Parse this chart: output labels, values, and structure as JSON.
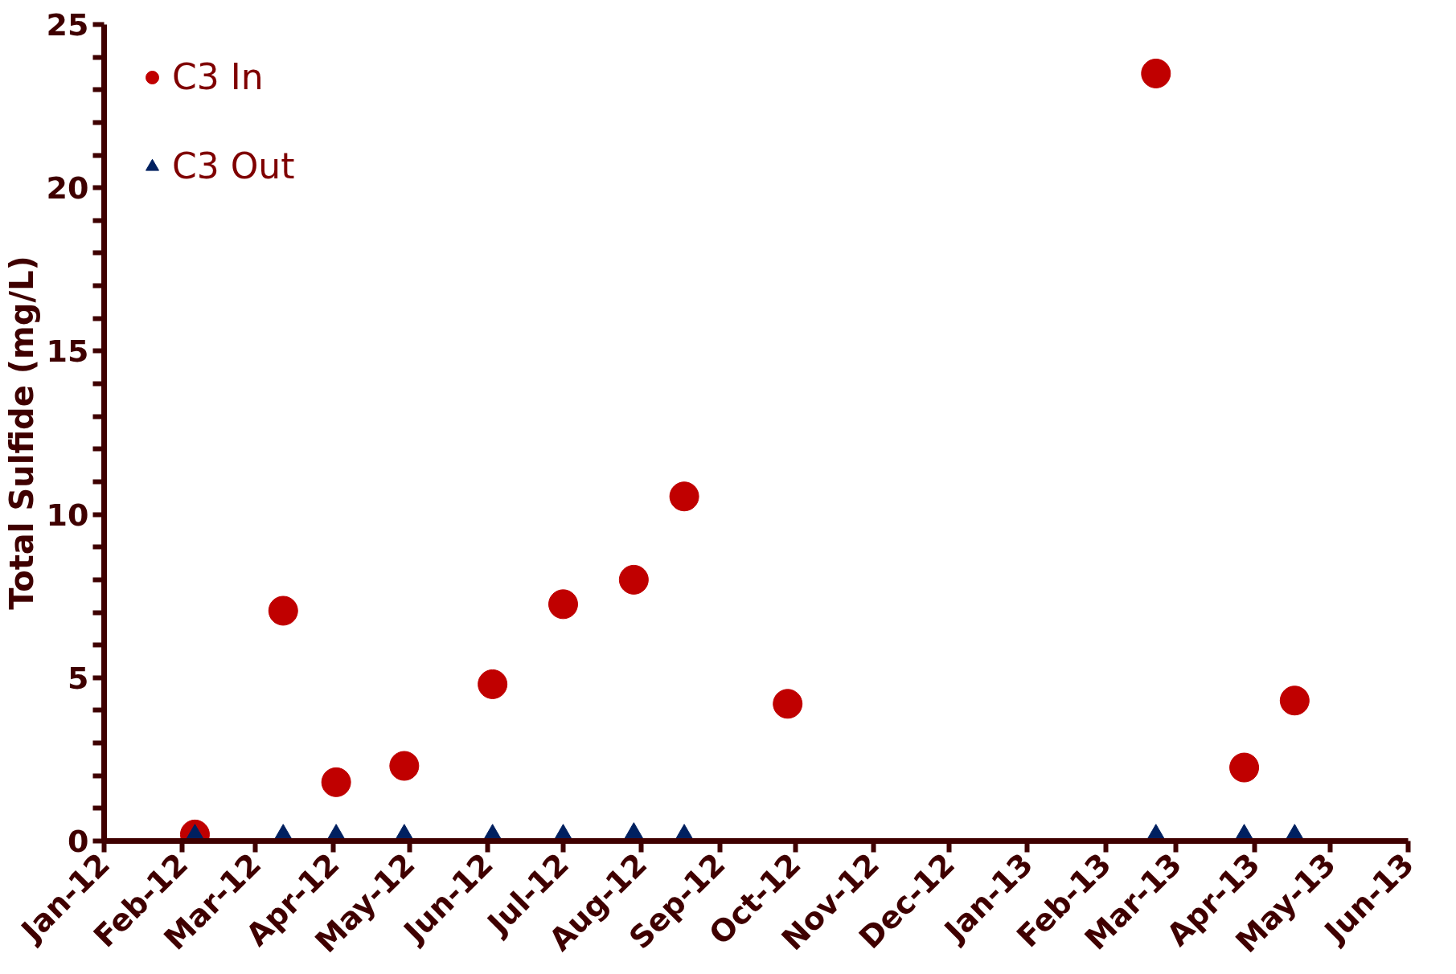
{
  "chart_data": {
    "type": "scatter",
    "ylabel": "Total Sulfide (mg/L)",
    "x": [
      "2012-02-06",
      "2012-03-12",
      "2012-04-02",
      "2012-04-29",
      "2012-06-03",
      "2012-07-01",
      "2012-07-29",
      "2012-08-18",
      "2012-09-28",
      "2013-02-21",
      "2013-03-28",
      "2013-04-17"
    ],
    "series": [
      {
        "name": "C3 In",
        "color": "#c00000",
        "marker": "circle",
        "values": [
          0.2,
          7.05,
          1.8,
          2.3,
          4.8,
          7.25,
          8.0,
          10.55,
          4.2,
          23.5,
          2.25,
          4.3
        ]
      },
      {
        "name": "C3 Out",
        "color": "#002060",
        "marker": "triangle",
        "values": [
          0,
          0,
          0,
          0,
          0,
          0,
          0.05,
          0,
          null,
          0,
          0,
          0
        ]
      }
    ],
    "xlim": [
      "2012-01-01",
      "2013-06-01"
    ],
    "xticks": [
      {
        "value": "2012-01-01",
        "label": "Jan-12"
      },
      {
        "value": "2012-02-01",
        "label": "Feb-12"
      },
      {
        "value": "2012-03-01",
        "label": "Mar-12"
      },
      {
        "value": "2012-04-01",
        "label": "Apr-12"
      },
      {
        "value": "2012-05-01",
        "label": "May-12"
      },
      {
        "value": "2012-06-01",
        "label": "Jun-12"
      },
      {
        "value": "2012-07-01",
        "label": "Jul-12"
      },
      {
        "value": "2012-08-01",
        "label": "Aug-12"
      },
      {
        "value": "2012-09-01",
        "label": "Sep-12"
      },
      {
        "value": "2012-10-01",
        "label": "Oct-12"
      },
      {
        "value": "2012-11-01",
        "label": "Nov-12"
      },
      {
        "value": "2012-12-01",
        "label": "Dec-12"
      },
      {
        "value": "2013-01-01",
        "label": "Jan-13"
      },
      {
        "value": "2013-02-01",
        "label": "Feb-13"
      },
      {
        "value": "2013-03-01",
        "label": "Mar-13"
      },
      {
        "value": "2013-04-01",
        "label": "Apr-13"
      },
      {
        "value": "2013-05-01",
        "label": "May-13"
      },
      {
        "value": "2013-06-01",
        "label": "Jun-13"
      }
    ],
    "ylim": [
      0,
      25
    ],
    "yticks": [
      0,
      {
        "value": 1,
        "label": null
      },
      {
        "value": 2,
        "label": null
      },
      {
        "value": 3,
        "label": null
      },
      {
        "value": 4,
        "label": null
      },
      5,
      {
        "value": 6,
        "label": null
      },
      {
        "value": 7,
        "label": null
      },
      {
        "value": 8,
        "label": null
      },
      {
        "value": 9,
        "label": null
      },
      10,
      {
        "value": 11,
        "label": null
      },
      {
        "value": 12,
        "label": null
      },
      {
        "value": 13,
        "label": null
      },
      {
        "value": 14,
        "label": null
      },
      15,
      {
        "value": 16,
        "label": null
      },
      {
        "value": 17,
        "label": null
      },
      {
        "value": 18,
        "label": null
      },
      {
        "value": 19,
        "label": null
      },
      20,
      {
        "value": 21,
        "label": null
      },
      {
        "value": 22,
        "label": null
      },
      {
        "value": 23,
        "label": null
      },
      {
        "value": 24,
        "label": null
      },
      25
    ],
    "grid": false,
    "legend": "top left"
  }
}
